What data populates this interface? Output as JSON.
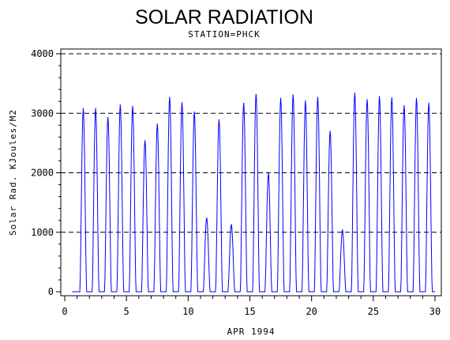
{
  "chart_data": {
    "type": "line",
    "title": "SOLAR RADIATION",
    "subtitle": "STATION=PHCK",
    "xlabel": "APR 1994",
    "ylabel": "Solar Rad. KJoules/M2",
    "xlim": [
      0,
      30
    ],
    "ylim": [
      0,
      4000
    ],
    "x_ticks": [
      0,
      5,
      10,
      15,
      20,
      25,
      30
    ],
    "y_ticks": [
      0,
      1000,
      2000,
      3000,
      4000
    ],
    "grid": "horizontal-dashed",
    "series_color": "#0000ff",
    "daily_peaks": [
      {
        "day": 1,
        "peak": 3080
      },
      {
        "day": 2,
        "peak": 3080
      },
      {
        "day": 3,
        "peak": 2930
      },
      {
        "day": 4,
        "peak": 3140
      },
      {
        "day": 5,
        "peak": 3120
      },
      {
        "day": 6,
        "peak": 2540
      },
      {
        "day": 7,
        "peak": 2820
      },
      {
        "day": 8,
        "peak": 3270
      },
      {
        "day": 9,
        "peak": 3180
      },
      {
        "day": 10,
        "peak": 3020
      },
      {
        "day": 11,
        "peak": 1240
      },
      {
        "day": 12,
        "peak": 2890
      },
      {
        "day": 13,
        "peak": 1130
      },
      {
        "day": 14,
        "peak": 3170
      },
      {
        "day": 15,
        "peak": 3320
      },
      {
        "day": 16,
        "peak": 1990
      },
      {
        "day": 17,
        "peak": 3250
      },
      {
        "day": 18,
        "peak": 3310
      },
      {
        "day": 19,
        "peak": 3210
      },
      {
        "day": 20,
        "peak": 3270
      },
      {
        "day": 21,
        "peak": 2700
      },
      {
        "day": 22,
        "peak": 1040
      },
      {
        "day": 23,
        "peak": 3340
      },
      {
        "day": 24,
        "peak": 3230
      },
      {
        "day": 25,
        "peak": 3280
      },
      {
        "day": 26,
        "peak": 3260
      },
      {
        "day": 27,
        "peak": 3130
      },
      {
        "day": 28,
        "peak": 3250
      },
      {
        "day": 29,
        "peak": 3170
      }
    ]
  }
}
